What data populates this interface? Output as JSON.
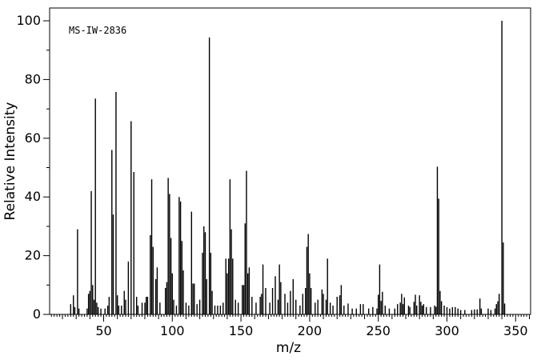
{
  "chart_data": {
    "type": "bar",
    "subtype": "mass-spectrum",
    "annotation": "MS-IW-2836",
    "xlabel": "m/z",
    "ylabel": "Relative Intensity",
    "xlim": [
      10,
      361
    ],
    "ylim": [
      0,
      100
    ],
    "x_major_ticks": [
      50,
      100,
      150,
      200,
      250,
      300,
      350
    ],
    "y_major_ticks": [
      0,
      20,
      40,
      60,
      80,
      100
    ],
    "grid": "off",
    "legend": "none",
    "axis_color": "#000000",
    "bar_color": "#000000",
    "background_color": "#ffffff",
    "base_peak_mz": 340,
    "peaks": [
      [
        26,
        3.5
      ],
      [
        28,
        6.5
      ],
      [
        29,
        2.5
      ],
      [
        31,
        29
      ],
      [
        32,
        2
      ],
      [
        38,
        2
      ],
      [
        39,
        7
      ],
      [
        40,
        8
      ],
      [
        41,
        42
      ],
      [
        42,
        10
      ],
      [
        43,
        5
      ],
      [
        44,
        73.5
      ],
      [
        45,
        4
      ],
      [
        46,
        2.5
      ],
      [
        48,
        2
      ],
      [
        51,
        2
      ],
      [
        53,
        3
      ],
      [
        54,
        6
      ],
      [
        56,
        56
      ],
      [
        57,
        34
      ],
      [
        59,
        75.8
      ],
      [
        60,
        6.5
      ],
      [
        61,
        3
      ],
      [
        63,
        3
      ],
      [
        65,
        8
      ],
      [
        66,
        5
      ],
      [
        68,
        18
      ],
      [
        70,
        65.8
      ],
      [
        72,
        48.5
      ],
      [
        74,
        6
      ],
      [
        75,
        3
      ],
      [
        78,
        4
      ],
      [
        80,
        4
      ],
      [
        81,
        6
      ],
      [
        82,
        6
      ],
      [
        84,
        27
      ],
      [
        85,
        46
      ],
      [
        86,
        23
      ],
      [
        88,
        12
      ],
      [
        89,
        16
      ],
      [
        91,
        4
      ],
      [
        95,
        9
      ],
      [
        96,
        11
      ],
      [
        97,
        46.5
      ],
      [
        98,
        41
      ],
      [
        99,
        26
      ],
      [
        100,
        14
      ],
      [
        101,
        5
      ],
      [
        103,
        3
      ],
      [
        105,
        40
      ],
      [
        106,
        38.5
      ],
      [
        107,
        25
      ],
      [
        108,
        15
      ],
      [
        110,
        4
      ],
      [
        112,
        3
      ],
      [
        114,
        35
      ],
      [
        115,
        10.5
      ],
      [
        116,
        10.5
      ],
      [
        118,
        3.5
      ],
      [
        120,
        5
      ],
      [
        122,
        21
      ],
      [
        123,
        30
      ],
      [
        124,
        28
      ],
      [
        125,
        12
      ],
      [
        127,
        94.3
      ],
      [
        128,
        21
      ],
      [
        129,
        8
      ],
      [
        131,
        3
      ],
      [
        133,
        3
      ],
      [
        135,
        3
      ],
      [
        137,
        4
      ],
      [
        139,
        19
      ],
      [
        140,
        14
      ],
      [
        141,
        19
      ],
      [
        142,
        46
      ],
      [
        143,
        29
      ],
      [
        144,
        19
      ],
      [
        146,
        5
      ],
      [
        148,
        4
      ],
      [
        151,
        10
      ],
      [
        152,
        10
      ],
      [
        153,
        31
      ],
      [
        154,
        48.9
      ],
      [
        155,
        14
      ],
      [
        156,
        16
      ],
      [
        158,
        6
      ],
      [
        161,
        4
      ],
      [
        164,
        6
      ],
      [
        165,
        7
      ],
      [
        166,
        17
      ],
      [
        168,
        9
      ],
      [
        171,
        4
      ],
      [
        173,
        9
      ],
      [
        175,
        13
      ],
      [
        177,
        5
      ],
      [
        178,
        17
      ],
      [
        179,
        11
      ],
      [
        182,
        7
      ],
      [
        184,
        4
      ],
      [
        186,
        8
      ],
      [
        188,
        12
      ],
      [
        190,
        5
      ],
      [
        193,
        3
      ],
      [
        195,
        7
      ],
      [
        197,
        9
      ],
      [
        198,
        23
      ],
      [
        199,
        27.4
      ],
      [
        200,
        14
      ],
      [
        201,
        9
      ],
      [
        204,
        4
      ],
      [
        206,
        5
      ],
      [
        209,
        8.5
      ],
      [
        210,
        7
      ],
      [
        212,
        5
      ],
      [
        213,
        19
      ],
      [
        215,
        4
      ],
      [
        217,
        3
      ],
      [
        220,
        6
      ],
      [
        222,
        6.5
      ],
      [
        223,
        10
      ],
      [
        225,
        3
      ],
      [
        228,
        3.7
      ],
      [
        231,
        2
      ],
      [
        234,
        2
      ],
      [
        237,
        3.5
      ],
      [
        239,
        3.5
      ],
      [
        243,
        2
      ],
      [
        246,
        2.5
      ],
      [
        249,
        2
      ],
      [
        250,
        6.7
      ],
      [
        251,
        17
      ],
      [
        252,
        4.6
      ],
      [
        253,
        7.7
      ],
      [
        255,
        3
      ],
      [
        258,
        2
      ],
      [
        262,
        2
      ],
      [
        264,
        3.5
      ],
      [
        266,
        4
      ],
      [
        267,
        7
      ],
      [
        268,
        3.5
      ],
      [
        269,
        5.8
      ],
      [
        272,
        3
      ],
      [
        273,
        2.5
      ],
      [
        276,
        4.3
      ],
      [
        277,
        6.7
      ],
      [
        278,
        3
      ],
      [
        280,
        6.5
      ],
      [
        281,
        4.3
      ],
      [
        282,
        3
      ],
      [
        283,
        3.5
      ],
      [
        285,
        2.5
      ],
      [
        288,
        2.5
      ],
      [
        291,
        3
      ],
      [
        292,
        2.6
      ],
      [
        293,
        50.3
      ],
      [
        294,
        39.4
      ],
      [
        295,
        8
      ],
      [
        296,
        4.5
      ],
      [
        298,
        3
      ],
      [
        300,
        2.5
      ],
      [
        302,
        2
      ],
      [
        304,
        2.5
      ],
      [
        306,
        2.5
      ],
      [
        308,
        2
      ],
      [
        310,
        1.5
      ],
      [
        313,
        1.5
      ],
      [
        318,
        1.5
      ],
      [
        320,
        1.7
      ],
      [
        322,
        1.7
      ],
      [
        324,
        5.4
      ],
      [
        325,
        2
      ],
      [
        330,
        2
      ],
      [
        332,
        1.5
      ],
      [
        335,
        2
      ],
      [
        336,
        3.5
      ],
      [
        337,
        4.5
      ],
      [
        338,
        7
      ],
      [
        340,
        100
      ],
      [
        341,
        24.5
      ],
      [
        342,
        3.7
      ]
    ]
  }
}
